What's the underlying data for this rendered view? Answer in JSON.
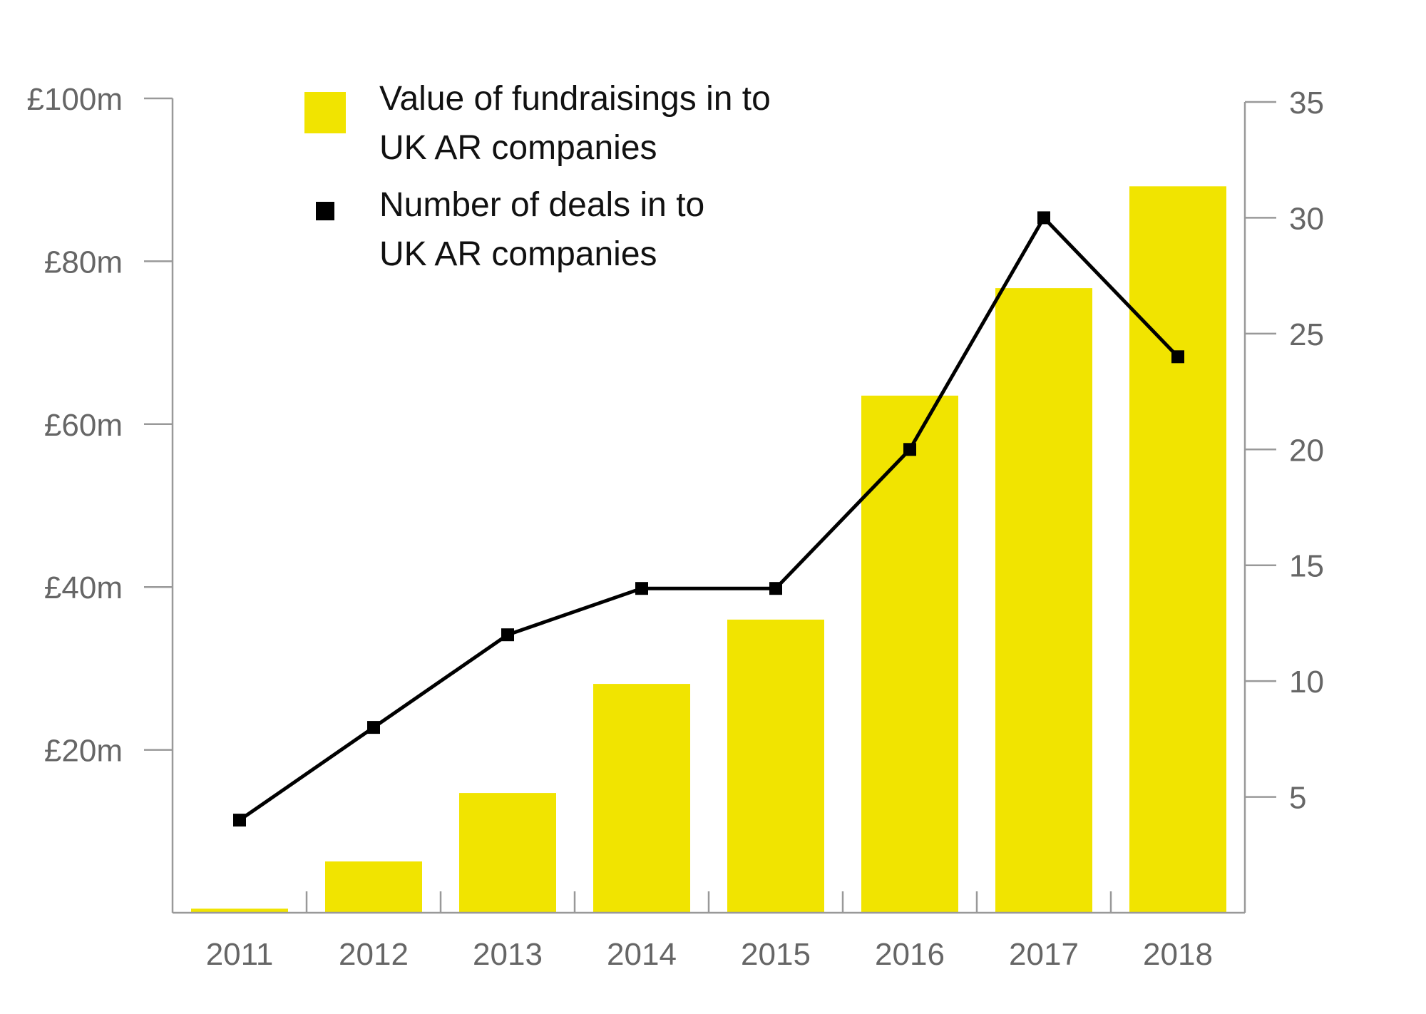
{
  "chart_data": {
    "type": "bar",
    "categories": [
      "2011",
      "2012",
      "2013",
      "2014",
      "2015",
      "2016",
      "2017",
      "2018"
    ],
    "series": [
      {
        "name_lines": [
          "Value of fundraisings in to",
          "UK AR companies"
        ],
        "type": "bar",
        "axis": "left",
        "values": [
          0.5,
          6.3,
          14.7,
          28.1,
          36.0,
          63.5,
          76.7,
          89.2
        ]
      },
      {
        "name_lines": [
          "Number of deals in to",
          "UK AR companies"
        ],
        "type": "line",
        "axis": "right",
        "values": [
          4,
          8,
          12,
          14,
          14,
          20,
          30,
          24
        ]
      }
    ],
    "y_left": {
      "ylim": [
        0,
        100
      ],
      "ticks": [
        20,
        40,
        60,
        80,
        100
      ],
      "tick_labels": [
        "£20m",
        "£40m",
        "£60m",
        "£80m",
        "£100m"
      ]
    },
    "y_right": {
      "ylim": [
        0,
        35
      ],
      "ticks": [
        5,
        10,
        15,
        20,
        25,
        30,
        35
      ],
      "tick_labels": [
        "5",
        "10",
        "15",
        "20",
        "25",
        "30",
        "35"
      ]
    },
    "grid": false,
    "legend_position": "top-left",
    "colors": {
      "bar": "#f1e400",
      "line": "#000000",
      "axis": "#999999",
      "tick_text": "#666666"
    }
  }
}
